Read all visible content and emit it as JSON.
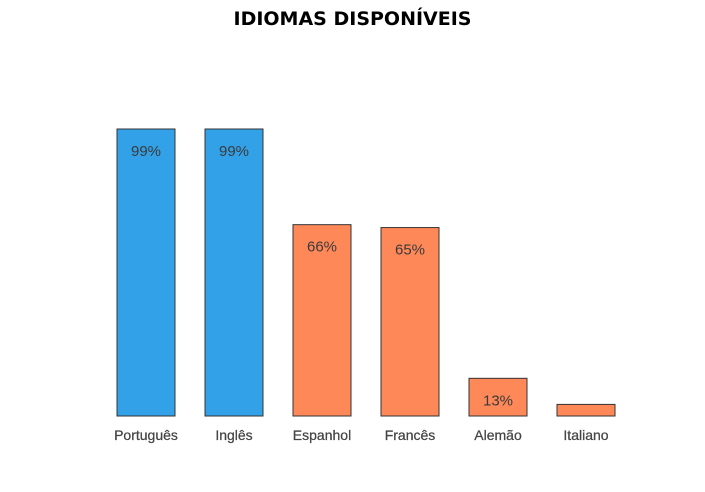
{
  "chart_data": {
    "type": "bar",
    "title": "IDIOMAS DISPONÍVEIS",
    "categories": [
      "Português",
      "Inglês",
      "Espanhol",
      "Francês",
      "Alemão",
      "Italiano"
    ],
    "values": [
      99,
      99,
      66,
      65,
      13,
      4
    ],
    "data_labels": [
      "99%",
      "99%",
      "66%",
      "65%",
      "13%",
      ""
    ],
    "bar_colors": [
      "#33a1e8",
      "#33a1e8",
      "#ff8859",
      "#ff8859",
      "#ff8859",
      "#ff8859"
    ],
    "ylim": [
      0,
      100
    ],
    "grid": false,
    "legend": "none",
    "xlabel": "",
    "ylabel": ""
  }
}
